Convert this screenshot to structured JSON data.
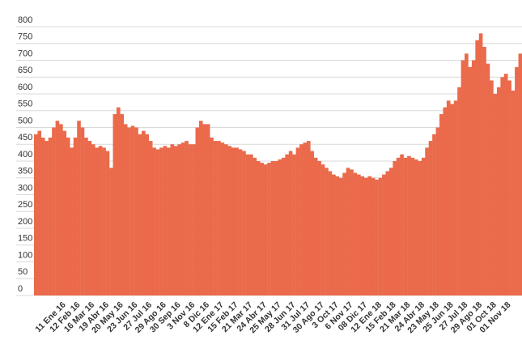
{
  "chart_data": {
    "type": "bar",
    "color": "#ea6a4b",
    "grid": true,
    "ylim": [
      0,
      800
    ],
    "yticks": [
      0,
      50,
      100,
      150,
      200,
      250,
      300,
      350,
      400,
      450,
      500,
      550,
      600,
      650,
      700,
      750,
      800
    ],
    "categories": [
      null,
      null,
      null,
      null,
      null,
      null,
      null,
      null,
      "11 Ene 16",
      null,
      null,
      null,
      "12 Feb 16",
      null,
      null,
      null,
      "16 Mar 16",
      null,
      null,
      null,
      "19 Abr 16",
      null,
      null,
      null,
      "20 May 16",
      null,
      null,
      null,
      "23 Jun 16",
      null,
      null,
      null,
      "27 Jul 16",
      null,
      null,
      null,
      "29 Ago 16",
      null,
      null,
      null,
      "30 Sep 16",
      null,
      null,
      null,
      "3 Nov 16",
      null,
      null,
      null,
      "8 Dic 16",
      null,
      null,
      null,
      "12 Ene 17",
      null,
      null,
      null,
      "15 Feb 17",
      null,
      null,
      null,
      "21 Mar 17",
      null,
      null,
      null,
      "24 Abr 17",
      null,
      null,
      null,
      "25 May 17",
      null,
      null,
      null,
      "28 Jun 17",
      null,
      null,
      null,
      "31 Jul 17",
      null,
      null,
      null,
      "30 Ago 17",
      null,
      null,
      null,
      "3 Oct 17",
      null,
      null,
      null,
      "6 Nov 17",
      null,
      null,
      null,
      "08 Dic 17",
      null,
      null,
      null,
      "12 Ene 18",
      null,
      null,
      null,
      "15 Feb 18",
      null,
      null,
      null,
      "21 Mar 18",
      null,
      null,
      null,
      "24 Abr 18",
      null,
      null,
      null,
      "23 May 18",
      null,
      null,
      null,
      "25 Jun 18",
      null,
      null,
      null,
      "27 Jul 18",
      null,
      null,
      null,
      "29 Ago 18",
      null,
      null,
      null,
      "01 Oct 18",
      null,
      null,
      null,
      "01 Nov 18",
      null,
      null,
      null
    ],
    "values": [
      480,
      490,
      470,
      460,
      470,
      500,
      520,
      510,
      490,
      470,
      440,
      470,
      520,
      500,
      470,
      460,
      450,
      440,
      445,
      440,
      430,
      380,
      540,
      560,
      540,
      510,
      500,
      505,
      500,
      480,
      490,
      480,
      460,
      440,
      435,
      440,
      445,
      440,
      450,
      445,
      450,
      455,
      460,
      450,
      450,
      500,
      520,
      510,
      510,
      470,
      460,
      460,
      455,
      450,
      445,
      440,
      440,
      435,
      430,
      420,
      420,
      410,
      400,
      395,
      390,
      395,
      400,
      400,
      405,
      410,
      420,
      430,
      420,
      440,
      450,
      455,
      460,
      430,
      410,
      400,
      390,
      380,
      370,
      360,
      355,
      350,
      365,
      380,
      375,
      365,
      360,
      355,
      350,
      355,
      350,
      345,
      350,
      360,
      370,
      380,
      400,
      410,
      420,
      410,
      415,
      410,
      405,
      400,
      410,
      440,
      460,
      480,
      500,
      540,
      560,
      580,
      570,
      580,
      620,
      700,
      720,
      680,
      700,
      760,
      780,
      740,
      690,
      640,
      600,
      620,
      650,
      660,
      640,
      610,
      680,
      720
    ]
  }
}
